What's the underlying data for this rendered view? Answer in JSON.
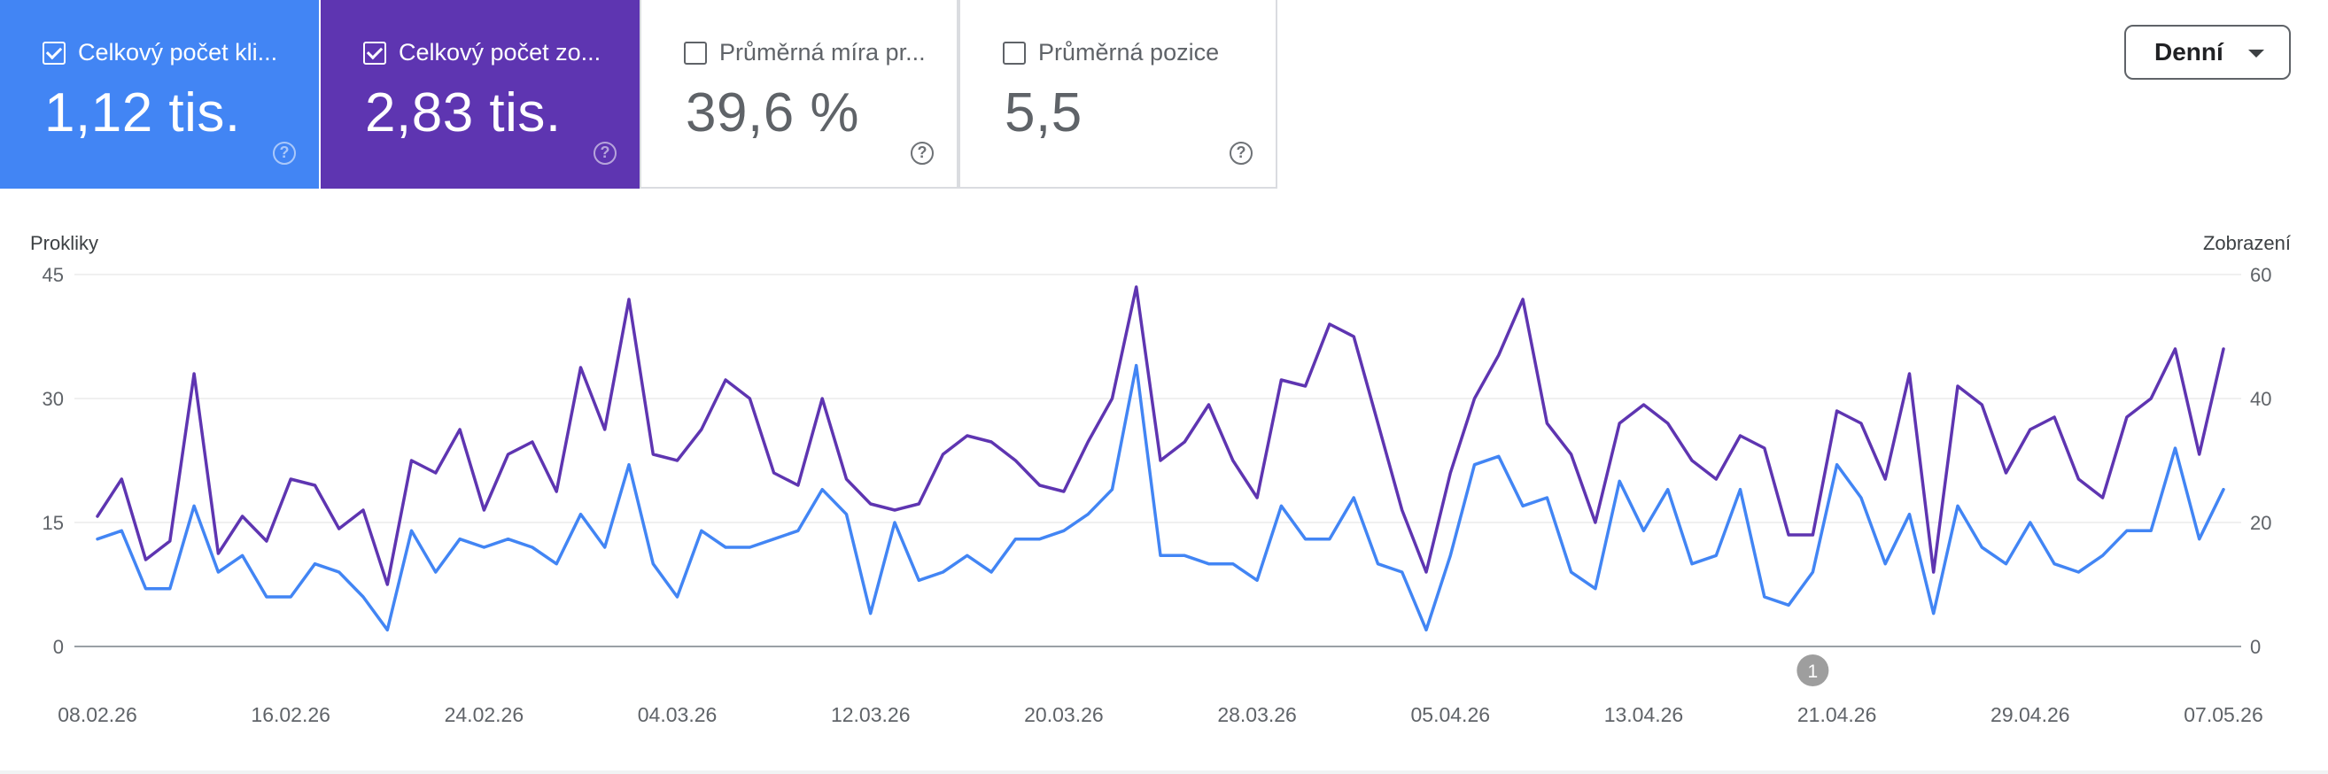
{
  "metrics": [
    {
      "label": "Celkový počet kli...",
      "value": "1,12 tis.",
      "checked": true,
      "color": "#4285f4",
      "help": "?"
    },
    {
      "label": "Celkový počet zo...",
      "value": "2,83 tis.",
      "checked": true,
      "color": "#5e35b1",
      "help": "?"
    },
    {
      "label": "Průměrná míra pr...",
      "value": "39,6 %",
      "checked": false,
      "help": "?"
    },
    {
      "label": "Průměrná pozice",
      "value": "5,5",
      "checked": false,
      "help": "?"
    }
  ],
  "period_dropdown": {
    "label": "Denní",
    "icon": "chevron-down-icon"
  },
  "annotation": {
    "label": "1",
    "date": "20.04.26"
  },
  "chart_data": {
    "type": "line",
    "left_axis_label": "Prokliky",
    "right_axis_label": "Zobrazení",
    "left_ticks": [
      "0",
      "15",
      "30",
      "45"
    ],
    "right_ticks": [
      "0",
      "20",
      "40",
      "60"
    ],
    "ylim_left": [
      0,
      45
    ],
    "ylim_right": [
      0,
      60
    ],
    "x_tick_labels": [
      "08.02.26",
      "16.02.26",
      "24.02.26",
      "04.03.26",
      "12.03.26",
      "20.03.26",
      "28.03.26",
      "05.04.26",
      "13.04.26",
      "21.04.26",
      "29.04.26",
      "07.05.26"
    ],
    "start_date": "08.02.26",
    "grid": true,
    "series": [
      {
        "axis": "left",
        "color": "#4285f4",
        "values": [
          13,
          14,
          7,
          7,
          17,
          9,
          11,
          6,
          6,
          10,
          9,
          6,
          2,
          14,
          9,
          13,
          12,
          13,
          12,
          10,
          16,
          12,
          22,
          10,
          6,
          14,
          12,
          12,
          13,
          14,
          19,
          16,
          4,
          15,
          8,
          9,
          11,
          9,
          13,
          13,
          14,
          16,
          19,
          34,
          11,
          11,
          10,
          10,
          8,
          17,
          13,
          13,
          18,
          10,
          9,
          2,
          11,
          22,
          23,
          17,
          18,
          9,
          7,
          20,
          14,
          19,
          10,
          11,
          19,
          6,
          5,
          9,
          22,
          18,
          10,
          16,
          4,
          17,
          12,
          10,
          15,
          10,
          9,
          11,
          14,
          14,
          24,
          13,
          19
        ]
      },
      {
        "axis": "right",
        "color": "#5e35b1",
        "values": [
          21,
          27,
          14,
          17,
          44,
          15,
          21,
          17,
          27,
          26,
          19,
          22,
          10,
          30,
          28,
          35,
          22,
          31,
          33,
          25,
          45,
          35,
          56,
          31,
          30,
          35,
          43,
          40,
          28,
          26,
          40,
          27,
          23,
          22,
          23,
          31,
          34,
          33,
          30,
          26,
          25,
          33,
          40,
          58,
          30,
          33,
          39,
          30,
          24,
          43,
          42,
          52,
          50,
          36,
          22,
          12,
          28,
          40,
          47,
          56,
          36,
          31,
          20,
          36,
          39,
          36,
          30,
          27,
          34,
          32,
          18,
          18,
          38,
          36,
          27,
          44,
          12,
          42,
          39,
          28,
          35,
          37,
          27,
          24,
          37,
          40,
          48,
          31,
          48
        ]
      }
    ]
  }
}
